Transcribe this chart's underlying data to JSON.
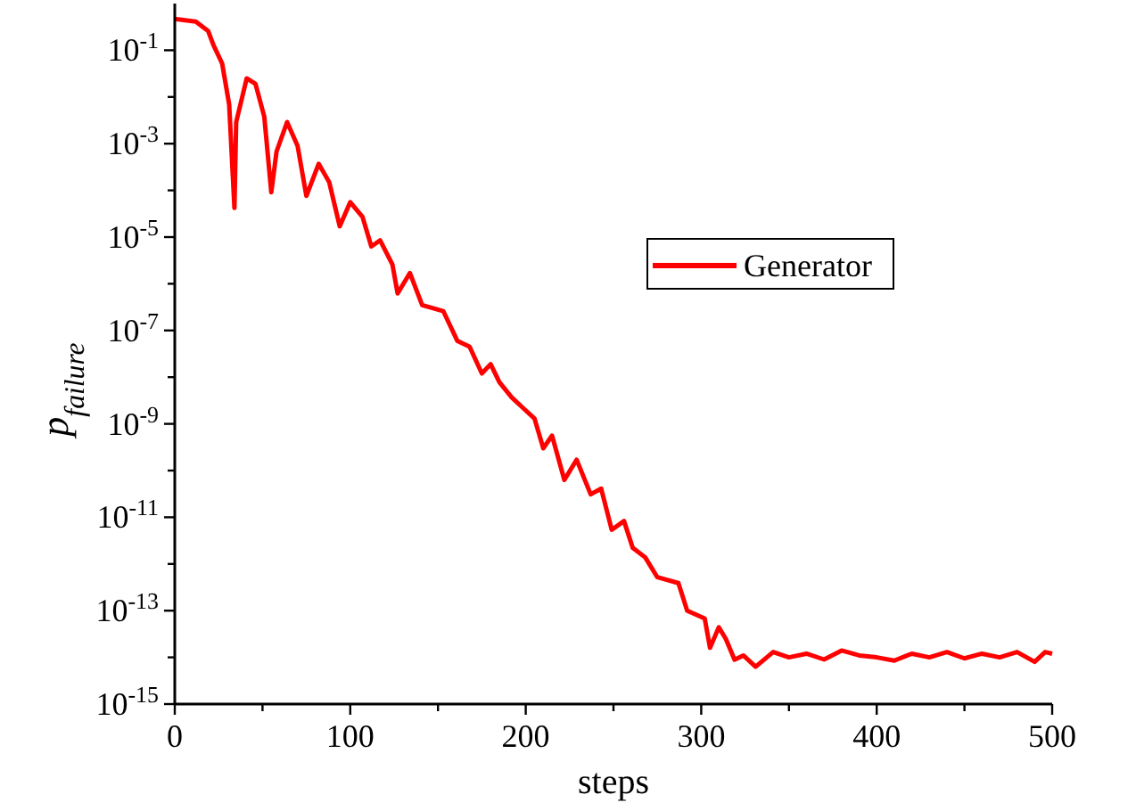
{
  "chart_data": {
    "type": "line",
    "xlabel": "steps",
    "ylabel": "p$_{failure}$",
    "log": "y",
    "grid": false,
    "legend": "right",
    "line_style": "solid",
    "marker": "none",
    "xlim": [
      0,
      500
    ],
    "xticks": [
      0,
      {
        "value": 50,
        "label": null
      },
      100,
      {
        "value": 150,
        "label": null
      },
      200,
      {
        "value": 250,
        "label": null
      },
      300,
      {
        "value": 350,
        "label": null
      },
      400,
      {
        "value": 450,
        "label": null
      },
      500
    ],
    "ylim": [
      1e-15,
      1
    ],
    "yticks": [
      {
        "value": 1e-15,
        "label": "10$^{-15}$"
      },
      {
        "value": 1e-14,
        "label": null
      },
      {
        "value": 1e-13,
        "label": "10$^{-13}$"
      },
      {
        "value": 1e-12,
        "label": null
      },
      {
        "value": 1e-11,
        "label": "10$^{-11}$"
      },
      {
        "value": 1e-10,
        "label": null
      },
      {
        "value": 1e-09,
        "label": "10$^{-9}$"
      },
      {
        "value": 1e-08,
        "label": null
      },
      {
        "value": 1e-07,
        "label": "10$^{-7}$"
      },
      {
        "value": 1e-06,
        "label": null
      },
      {
        "value": 1e-05,
        "label": "10$^{-5}$"
      },
      {
        "value": 0.0001,
        "label": null
      },
      {
        "value": 0.001,
        "label": "10$^{-3}$"
      },
      {
        "value": 0.01,
        "label": null
      },
      {
        "value": 0.1,
        "label": "10$^{-1}$"
      }
    ],
    "series": [
      {
        "name": "Generator",
        "color": "#ff0000",
        "x": [
          0,
          12,
          19,
          22,
          27,
          31,
          34,
          35,
          41,
          46,
          51,
          55,
          58,
          64,
          70,
          75,
          82,
          88,
          94,
          100,
          107,
          112,
          117,
          124,
          127,
          134,
          141,
          153,
          161,
          168,
          175,
          180,
          185,
          192,
          199,
          205,
          210,
          215,
          222,
          229,
          237,
          243,
          249,
          256,
          261,
          268,
          275,
          287,
          292,
          302,
          305,
          310,
          314,
          319,
          324,
          331,
          341,
          350,
          360,
          370,
          380,
          390,
          400,
          410,
          420,
          430,
          440,
          450,
          460,
          470,
          480,
          490,
          496,
          500
        ],
        "values": [
          0.47,
          0.41,
          0.26,
          0.13,
          0.052,
          0.0069,
          4.2e-05,
          0.0029,
          0.025,
          0.019,
          0.0038,
          9.1e-05,
          0.00068,
          0.0029,
          0.00089,
          7.6e-05,
          0.00037,
          0.00015,
          1.7e-05,
          5.6e-05,
          2.7e-05,
          6.3e-06,
          8.5e-06,
          2.6e-06,
          6.2e-07,
          1.7e-06,
          3.5e-07,
          2.6e-07,
          6e-08,
          4.5e-08,
          1.2e-08,
          1.9e-08,
          7.8e-09,
          3.7e-09,
          2.1e-09,
          1.3e-09,
          3e-10,
          5.6e-10,
          6.3e-11,
          1.7e-10,
          3.1e-11,
          4.1e-11,
          5.4e-12,
          8.3e-12,
          2.2e-12,
          1.4e-12,
          5.2e-13,
          3.9e-13,
          1e-13,
          6.8e-14,
          1.6e-14,
          4.4e-14,
          2.5e-14,
          8.9e-15,
          1.1e-14,
          6.3e-15,
          1.3e-14,
          1e-14,
          1.2e-14,
          9e-15,
          1.4e-14,
          1.1e-14,
          1e-14,
          8.5e-15,
          1.2e-14,
          1e-14,
          1.3e-14,
          9.5e-15,
          1.2e-14,
          1e-14,
          1.3e-14,
          8e-15,
          1.3e-14,
          1.2e-14
        ]
      }
    ]
  }
}
